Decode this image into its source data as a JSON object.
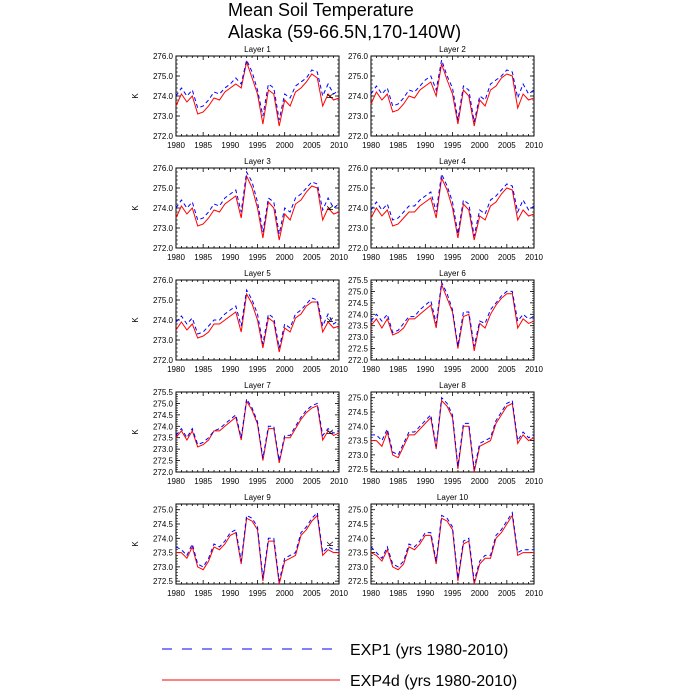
{
  "chart_data": {
    "type": "line",
    "title_lines": [
      "Mean Soil Temperature",
      "Alaska (59-66.5N,170-140W)"
    ],
    "ylabel": "K",
    "x_years": [
      1980,
      1981,
      1982,
      1983,
      1984,
      1985,
      1986,
      1987,
      1988,
      1989,
      1990,
      1991,
      1992,
      1993,
      1994,
      1995,
      1996,
      1997,
      1998,
      1999,
      2000,
      2001,
      2002,
      2003,
      2004,
      2005,
      2006,
      2007,
      2008,
      2009,
      2010
    ],
    "xlim": [
      1980,
      2010
    ],
    "xticks": [
      1980,
      1985,
      1990,
      1995,
      2000,
      2005,
      2010
    ],
    "legend": [
      {
        "name": "EXP1 (yrs 1980-2010)",
        "color": "#0000ff",
        "style": "dashed"
      },
      {
        "name": "EXP4d (yrs 1980-2010)",
        "color": "#ff0000",
        "style": "solid"
      }
    ],
    "panels": [
      {
        "title": "Layer 1",
        "ylim": [
          272.0,
          276.0
        ],
        "yticks": [
          "272.0",
          "273.0",
          "274.0",
          "275.0",
          "276.0"
        ],
        "exp1": [
          274.0,
          274.4,
          274.0,
          274.3,
          273.4,
          273.5,
          273.8,
          274.2,
          274.1,
          274.4,
          274.6,
          274.9,
          274.6,
          275.8,
          275.2,
          274.3,
          273.0,
          274.6,
          274.4,
          272.8,
          274.1,
          273.9,
          274.5,
          274.7,
          274.9,
          275.3,
          275.2,
          274.0,
          274.6,
          274.1,
          274.3
        ],
        "exp4d": [
          273.5,
          274.1,
          273.7,
          274.0,
          273.1,
          273.2,
          273.5,
          273.9,
          273.8,
          274.2,
          274.4,
          274.6,
          274.4,
          275.7,
          274.9,
          274.1,
          272.6,
          274.3,
          274.1,
          272.5,
          273.8,
          273.5,
          274.2,
          274.4,
          274.7,
          275.1,
          274.9,
          273.5,
          274.1,
          273.8,
          273.9
        ]
      },
      {
        "title": "Layer 2",
        "ylim": [
          272.0,
          276.0
        ],
        "yticks": [
          "272.0",
          "273.0",
          "274.0",
          "275.0",
          "276.0"
        ],
        "exp1": [
          274.1,
          274.5,
          274.1,
          274.4,
          273.5,
          273.6,
          273.9,
          274.3,
          274.2,
          274.5,
          274.8,
          275.0,
          274.3,
          275.8,
          275.0,
          274.4,
          272.8,
          274.5,
          274.3,
          272.7,
          274.0,
          273.8,
          274.6,
          274.8,
          275.0,
          275.3,
          275.2,
          273.9,
          274.6,
          274.1,
          274.3
        ],
        "exp4d": [
          273.6,
          274.2,
          273.8,
          274.1,
          273.2,
          273.3,
          273.6,
          274.0,
          273.9,
          274.3,
          274.5,
          274.7,
          274.0,
          275.6,
          274.8,
          274.1,
          272.6,
          274.3,
          274.0,
          272.5,
          273.8,
          273.5,
          274.3,
          274.5,
          274.9,
          275.1,
          275.0,
          273.4,
          274.1,
          273.8,
          273.9
        ]
      },
      {
        "title": "Layer 3",
        "ylim": [
          272.0,
          276.0
        ],
        "yticks": [
          "272.0",
          "273.0",
          "274.0",
          "275.0",
          "276.0"
        ],
        "exp1": [
          274.0,
          274.4,
          274.0,
          274.3,
          273.4,
          273.5,
          273.8,
          274.2,
          274.1,
          274.5,
          274.7,
          274.9,
          273.8,
          275.8,
          275.3,
          274.3,
          272.8,
          274.5,
          274.3,
          272.7,
          274.0,
          273.8,
          274.5,
          274.7,
          275.0,
          275.3,
          275.2,
          273.9,
          274.5,
          274.0,
          274.2
        ],
        "exp4d": [
          273.5,
          274.1,
          273.7,
          274.0,
          273.1,
          273.2,
          273.5,
          273.9,
          273.8,
          274.2,
          274.4,
          274.6,
          273.5,
          275.6,
          275.0,
          274.0,
          272.5,
          274.3,
          274.0,
          272.4,
          273.7,
          273.4,
          274.2,
          274.4,
          274.8,
          275.1,
          275.0,
          273.4,
          274.0,
          273.7,
          273.8
        ]
      },
      {
        "title": "Layer 4",
        "ylim": [
          272.0,
          276.0
        ],
        "yticks": [
          "272.0",
          "273.0",
          "274.0",
          "275.0",
          "276.0"
        ],
        "exp1": [
          273.9,
          274.3,
          273.9,
          274.2,
          273.4,
          273.5,
          273.8,
          274.1,
          274.1,
          274.4,
          274.6,
          274.8,
          273.8,
          275.7,
          275.1,
          274.3,
          272.7,
          274.4,
          274.2,
          272.6,
          273.9,
          273.7,
          274.4,
          274.6,
          274.9,
          275.2,
          275.1,
          273.8,
          274.4,
          273.9,
          274.1
        ],
        "exp4d": [
          273.5,
          274.0,
          273.6,
          273.9,
          273.1,
          273.2,
          273.5,
          273.8,
          273.8,
          274.1,
          274.3,
          274.5,
          273.5,
          275.5,
          274.9,
          274.0,
          272.5,
          274.2,
          273.9,
          272.4,
          273.6,
          273.4,
          274.1,
          274.3,
          274.7,
          275.0,
          274.9,
          273.4,
          273.9,
          273.6,
          273.7
        ]
      },
      {
        "title": "Layer 5",
        "ylim": [
          272.0,
          276.0
        ],
        "yticks": [
          "272.0",
          "273.0",
          "274.0",
          "275.0",
          "276.0"
        ],
        "exp1": [
          273.9,
          274.2,
          273.8,
          274.1,
          273.3,
          273.4,
          273.7,
          274.0,
          274.0,
          274.3,
          274.5,
          274.7,
          273.7,
          275.5,
          275.0,
          274.3,
          272.8,
          274.3,
          274.1,
          272.6,
          273.8,
          273.6,
          274.3,
          274.5,
          274.8,
          275.1,
          275.0,
          273.7,
          274.3,
          273.8,
          274.0
        ],
        "exp4d": [
          273.5,
          273.9,
          273.5,
          273.8,
          273.1,
          273.2,
          273.4,
          273.8,
          273.8,
          274.0,
          274.2,
          274.4,
          273.4,
          275.3,
          274.8,
          274.0,
          272.6,
          274.1,
          273.9,
          272.4,
          273.6,
          273.4,
          274.1,
          274.3,
          274.7,
          274.9,
          274.9,
          273.4,
          273.9,
          273.6,
          273.7
        ]
      },
      {
        "title": "Layer 6",
        "ylim": [
          272.0,
          275.5
        ],
        "yticks": [
          "272.0",
          "272.5",
          "273.0",
          "273.5",
          "274.0",
          "274.5",
          "275.0",
          "275.5"
        ],
        "exp1": [
          273.7,
          274.0,
          273.7,
          274.0,
          273.2,
          273.3,
          273.6,
          273.9,
          273.9,
          274.2,
          274.4,
          274.6,
          273.6,
          275.4,
          274.9,
          274.2,
          272.6,
          274.1,
          274.1,
          272.6,
          273.7,
          273.6,
          274.2,
          274.5,
          274.8,
          275.0,
          275.0,
          273.7,
          274.0,
          273.8,
          273.9
        ],
        "exp4d": [
          273.5,
          273.8,
          273.4,
          273.8,
          273.1,
          273.2,
          273.4,
          273.8,
          273.8,
          274.0,
          274.2,
          274.4,
          273.4,
          275.3,
          274.7,
          274.1,
          272.5,
          273.9,
          274.0,
          272.4,
          273.6,
          273.4,
          274.0,
          274.4,
          274.7,
          274.9,
          274.9,
          273.4,
          273.8,
          273.6,
          273.7
        ]
      },
      {
        "title": "Layer 7",
        "ylim": [
          272.0,
          275.5
        ],
        "yticks": [
          "272.0",
          "272.5",
          "273.0",
          "273.5",
          "274.0",
          "274.5",
          "275.0",
          "275.5"
        ],
        "exp1": [
          273.6,
          273.9,
          273.5,
          273.9,
          273.2,
          273.3,
          273.5,
          273.8,
          273.9,
          274.1,
          274.3,
          274.5,
          273.5,
          275.2,
          274.8,
          274.2,
          272.6,
          274.0,
          274.0,
          272.5,
          273.6,
          273.6,
          274.0,
          274.4,
          274.7,
          274.9,
          275.0,
          273.6,
          273.9,
          273.7,
          273.8
        ],
        "exp4d": [
          273.5,
          273.8,
          273.4,
          273.8,
          273.1,
          273.2,
          273.4,
          273.8,
          273.8,
          274.0,
          274.2,
          274.4,
          273.4,
          275.1,
          274.7,
          274.1,
          272.5,
          273.9,
          273.9,
          272.4,
          273.5,
          273.5,
          273.9,
          274.3,
          274.6,
          274.8,
          274.9,
          273.4,
          273.8,
          273.6,
          273.7
        ]
      },
      {
        "title": "Layer 8",
        "ylim": [
          272.4,
          275.2
        ],
        "yticks": [
          "272.5",
          "273.0",
          "273.5",
          "274.0",
          "274.5",
          "275.0"
        ],
        "exp1": [
          273.7,
          273.7,
          273.5,
          273.9,
          273.1,
          273.0,
          273.4,
          273.8,
          273.8,
          274.0,
          274.2,
          274.4,
          273.3,
          275.0,
          274.8,
          274.4,
          272.6,
          274.1,
          274.1,
          272.5,
          273.4,
          273.5,
          273.6,
          274.2,
          274.5,
          274.8,
          274.9,
          273.5,
          273.8,
          273.6,
          273.7
        ],
        "exp4d": [
          273.5,
          273.5,
          273.3,
          273.8,
          273.0,
          272.9,
          273.3,
          273.7,
          273.7,
          273.9,
          274.1,
          274.3,
          273.2,
          274.9,
          274.7,
          274.3,
          272.5,
          274.0,
          274.0,
          272.4,
          273.3,
          273.4,
          273.5,
          274.1,
          274.4,
          274.7,
          274.8,
          273.4,
          273.7,
          273.5,
          273.6
        ]
      },
      {
        "title": "Layer 9",
        "ylim": [
          272.4,
          275.2
        ],
        "yticks": [
          "272.5",
          "273.0",
          "273.5",
          "274.0",
          "274.5",
          "275.0"
        ],
        "exp1": [
          273.7,
          273.6,
          273.4,
          273.8,
          273.1,
          273.0,
          273.3,
          273.8,
          273.7,
          273.9,
          274.2,
          274.3,
          273.2,
          274.8,
          274.7,
          274.4,
          272.6,
          274.0,
          274.0,
          272.5,
          273.3,
          273.4,
          273.5,
          274.2,
          274.4,
          274.7,
          274.9,
          273.5,
          273.7,
          273.6,
          273.6
        ],
        "exp4d": [
          273.5,
          273.5,
          273.3,
          273.7,
          273.0,
          272.9,
          273.2,
          273.7,
          273.6,
          273.8,
          274.1,
          274.2,
          273.1,
          274.7,
          274.6,
          274.3,
          272.5,
          273.9,
          273.9,
          272.4,
          273.2,
          273.3,
          273.4,
          274.1,
          274.3,
          274.6,
          274.8,
          273.4,
          273.6,
          273.5,
          273.5
        ]
      },
      {
        "title": "Layer 10",
        "ylim": [
          272.4,
          275.2
        ],
        "yticks": [
          "272.5",
          "273.0",
          "273.5",
          "274.0",
          "274.5",
          "275.0"
        ],
        "exp1": [
          273.7,
          273.5,
          273.3,
          273.7,
          273.1,
          273.0,
          273.2,
          273.8,
          273.7,
          273.9,
          274.2,
          274.2,
          273.2,
          274.8,
          274.7,
          274.4,
          272.6,
          273.9,
          274.0,
          272.5,
          273.2,
          273.4,
          273.4,
          274.1,
          274.3,
          274.6,
          274.9,
          273.5,
          273.6,
          273.6,
          273.6
        ],
        "exp4d": [
          273.5,
          273.4,
          273.2,
          273.6,
          273.0,
          272.9,
          273.1,
          273.7,
          273.6,
          273.8,
          274.1,
          274.1,
          273.1,
          274.7,
          274.6,
          274.3,
          272.5,
          273.8,
          273.9,
          272.4,
          273.1,
          273.3,
          273.3,
          274.0,
          274.2,
          274.5,
          274.8,
          273.4,
          273.5,
          273.5,
          273.5
        ]
      }
    ]
  }
}
